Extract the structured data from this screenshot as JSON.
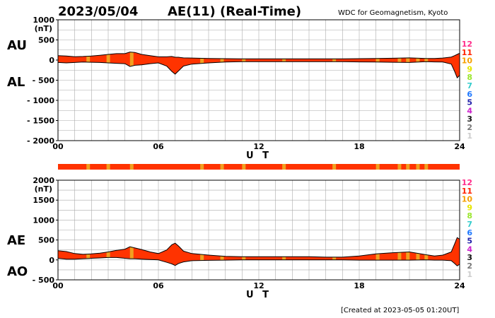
{
  "header": {
    "date": "2023/05/04",
    "title": "AE(11) (Real-Time)",
    "credit": "WDC for Geomagnetism, Kyoto"
  },
  "footer": {
    "created": "[Created at 2023-05-05 01:20UT]"
  },
  "colors": {
    "fill_main": "#ff3300",
    "fill_stripe": "#f0a020",
    "outline": "#000000",
    "grid": "#aaaaaa"
  },
  "legend": [
    {
      "label": "12",
      "color": "#ff2d8a"
    },
    {
      "label": "11",
      "color": "#ff2200"
    },
    {
      "label": "10",
      "color": "#f5a000"
    },
    {
      "label": "9",
      "color": "#e6e600"
    },
    {
      "label": "8",
      "color": "#9ae62e"
    },
    {
      "label": "7",
      "color": "#33cccc"
    },
    {
      "label": "6",
      "color": "#1e78ff"
    },
    {
      "label": "5",
      "color": "#2222aa"
    },
    {
      "label": "4",
      "color": "#cc22cc"
    },
    {
      "label": "3",
      "color": "#111111"
    },
    {
      "label": "2",
      "color": "#777777"
    },
    {
      "label": "1",
      "color": "#cccccc"
    }
  ],
  "status_bar": {
    "stripe_hours": [
      1.7,
      2.9,
      4.3,
      8.5,
      9.7,
      11.0,
      13.4,
      16.4,
      19.0,
      20.3,
      20.8,
      21.4,
      21.9
    ]
  },
  "chart_data": [
    {
      "type": "area",
      "name_upper": "AU",
      "name_lower": "AL",
      "unit": "(nT)",
      "xlabel": "U T",
      "x_ticks": [
        "00",
        "06",
        "12",
        "18",
        "24"
      ],
      "xlim": [
        0,
        24
      ],
      "ylim": [
        -2000,
        1000
      ],
      "y_ticks": [
        "1000",
        "500",
        "0",
        "- 500",
        "- 1000",
        "- 1500",
        "- 2000"
      ],
      "y_tick_values": [
        1000,
        500,
        0,
        -500,
        -1000,
        -1500,
        -2000
      ],
      "grid": true,
      "x": [
        0,
        0.5,
        1,
        1.5,
        2,
        2.5,
        3,
        3.5,
        4,
        4.3,
        4.6,
        5,
        5.5,
        6,
        6.5,
        6.8,
        7,
        7.2,
        7.5,
        8,
        9,
        10,
        11,
        12,
        13,
        14,
        15,
        16,
        17,
        18,
        19,
        20,
        21,
        22,
        22.5,
        23,
        23.5,
        23.7,
        23.85,
        24
      ],
      "upper": [
        110,
        100,
        85,
        90,
        100,
        120,
        140,
        160,
        160,
        200,
        190,
        140,
        110,
        80,
        80,
        90,
        70,
        70,
        55,
        50,
        40,
        35,
        30,
        30,
        30,
        30,
        30,
        30,
        30,
        35,
        40,
        45,
        55,
        40,
        40,
        50,
        75,
        110,
        140,
        170
      ],
      "lower": [
        -60,
        -70,
        -60,
        -50,
        -55,
        -60,
        -70,
        -80,
        -90,
        -160,
        -130,
        -120,
        -90,
        -70,
        -150,
        -280,
        -350,
        -270,
        -150,
        -100,
        -70,
        -50,
        -40,
        -40,
        -40,
        -40,
        -40,
        -40,
        -40,
        -45,
        -50,
        -55,
        -60,
        -40,
        -45,
        -50,
        -100,
        -280,
        -440,
        -380
      ]
    },
    {
      "type": "area",
      "name_upper": "AE",
      "name_lower": "AO",
      "unit": "(nT)",
      "xlabel": "U T",
      "x_ticks": [
        "00",
        "06",
        "12",
        "18",
        "24"
      ],
      "xlim": [
        0,
        24
      ],
      "ylim": [
        -500,
        2000
      ],
      "y_ticks": [
        "2000",
        "1500",
        "1000",
        "500",
        "0",
        "- 500"
      ],
      "y_tick_values": [
        2000,
        1500,
        1000,
        500,
        0,
        -500
      ],
      "grid": true,
      "x": [
        0,
        0.5,
        1,
        1.5,
        2,
        2.5,
        3,
        3.5,
        4,
        4.3,
        4.6,
        5,
        5.5,
        6,
        6.5,
        6.8,
        7,
        7.2,
        7.5,
        8,
        9,
        10,
        11,
        12,
        13,
        14,
        15,
        16,
        17,
        18,
        19,
        20,
        21,
        22,
        22.5,
        23,
        23.5,
        23.7,
        23.85,
        24
      ],
      "upper": [
        230,
        210,
        160,
        140,
        150,
        170,
        200,
        240,
        270,
        330,
        300,
        260,
        200,
        160,
        250,
        380,
        420,
        350,
        220,
        160,
        120,
        90,
        80,
        80,
        80,
        80,
        80,
        70,
        70,
        100,
        150,
        180,
        200,
        130,
        100,
        120,
        200,
        400,
        560,
        520
      ],
      "lower": [
        40,
        20,
        20,
        30,
        40,
        50,
        60,
        60,
        40,
        30,
        30,
        20,
        10,
        0,
        -60,
        -100,
        -140,
        -90,
        -50,
        -20,
        -10,
        -5,
        0,
        0,
        0,
        0,
        0,
        0,
        0,
        -5,
        -5,
        -5,
        -5,
        0,
        -5,
        -5,
        -20,
        -90,
        -150,
        -110
      ]
    }
  ]
}
